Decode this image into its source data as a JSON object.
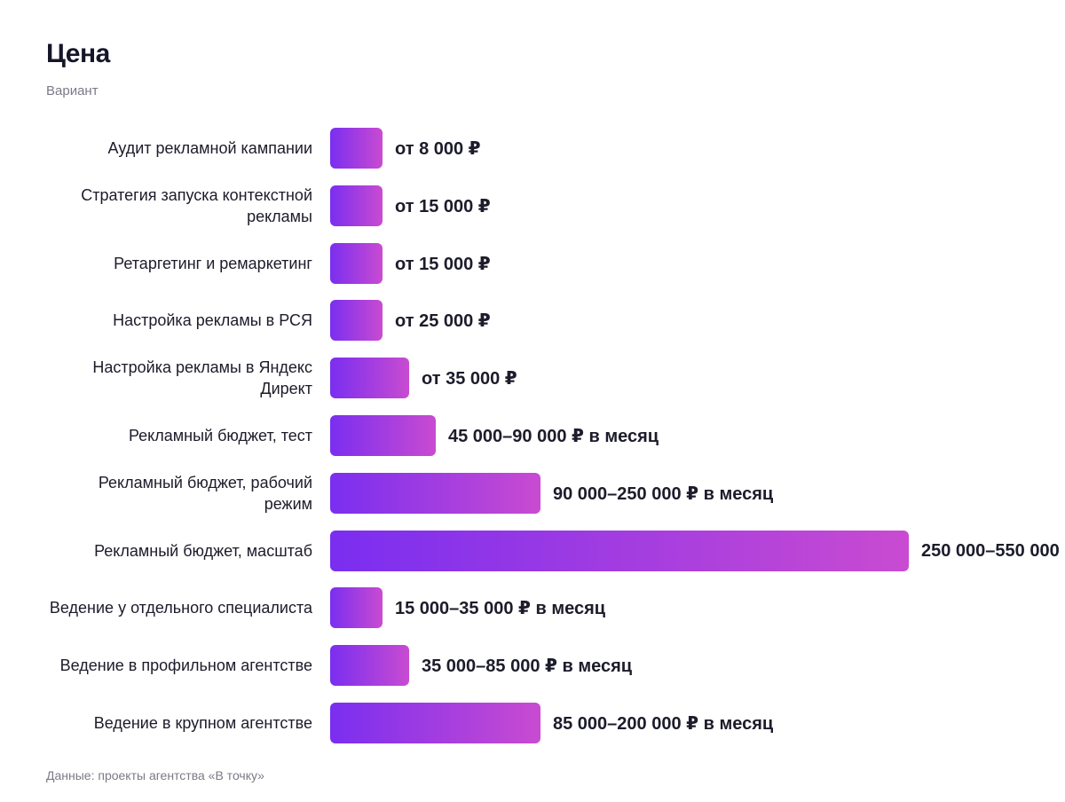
{
  "header": {
    "title": "Цена",
    "subtitle": "Вариант"
  },
  "footer": {
    "source": "Данные: проекты агентства «В точку»"
  },
  "colors": {
    "bar_start": "#7a2ef0",
    "bar_end": "#c94bd1"
  },
  "chart_data": {
    "type": "bar",
    "orientation": "horizontal",
    "title": "Цена",
    "subtitle": "Вариант",
    "categories": [
      "Аудит рекламной кампании",
      "Стратегия запуска контекстной рекламы",
      "Ретаргетинг и ремаркетинг",
      "Настройка рекламы в РСЯ",
      "Настройка рекламы в Яндекс Директ",
      "Рекламный бюджет, тест",
      "Рекламный бюджет, рабочий режим",
      "Рекламный бюджет, масштаб",
      "Ведение у отдельного специалиста",
      "Ведение в профильном агентстве",
      "Ведение в крупном агентстве"
    ],
    "values": [
      1,
      1,
      1,
      1,
      1.5,
      2,
      4,
      11,
      1,
      1.5,
      4
    ],
    "value_labels": [
      "от 8 000 ₽",
      "от 15 000 ₽",
      "от 15 000 ₽",
      "от 25 000 ₽",
      "от 35 000 ₽",
      "45 000–90 000 ₽ в месяц",
      "90 000–250 000 ₽ в месяц",
      "250 000–550 000",
      "15 000–35 000 ₽ в месяц",
      "35 000–85 000 ₽ в месяц",
      "85 000–200 000 ₽ в месяц"
    ],
    "xlim": [
      0,
      11
    ],
    "grid": false,
    "legend": "none",
    "source": "Данные: проекты агентства «В точку»"
  }
}
